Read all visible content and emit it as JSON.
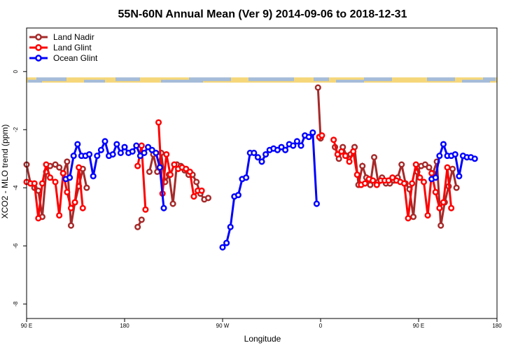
{
  "chart_data": {
    "type": "line",
    "title": "55N-60N Annual Mean (Ver 9)   2014-09-06 to 2018-12-31",
    "xlabel": "Longitude",
    "ylabel": "XCO2 - MLO trend (ppm)",
    "xlim": [
      -180,
      180
    ],
    "ylim": [
      -8.5,
      1.5
    ],
    "x_ticks": [
      {
        "value": -180,
        "label": "90 E"
      },
      {
        "value": -105,
        "label": "180"
      },
      {
        "value": -30,
        "label": "90 W"
      },
      {
        "value": 45,
        "label": "0"
      },
      {
        "value": 120,
        "label": "90 E"
      },
      {
        "value": 180,
        "label": "180"
      }
    ],
    "y_ticks": [
      0,
      -2,
      -4,
      -6,
      -8
    ],
    "grid": false,
    "legend_position": "top-left",
    "map_strip": {
      "y_top": -0.2,
      "y_bottom": -0.38,
      "land_color": "#f5d77a",
      "ocean_color": "#a5bcd9"
    },
    "series": [
      {
        "name": "Land Nadir",
        "color": "#a52a2a",
        "segments": [
          [
            [
              -180,
              -3.2
            ],
            [
              -177,
              -3.85
            ],
            [
              -174,
              -4.0
            ],
            [
              -171,
              -4.1
            ],
            [
              -168,
              -5.0
            ],
            [
              -165,
              -3.45
            ],
            [
              -162,
              -3.25
            ],
            [
              -158,
              -3.2
            ],
            [
              -155,
              -3.3
            ],
            [
              -152,
              -3.5
            ],
            [
              -149,
              -3.1
            ],
            [
              -146,
              -5.3
            ],
            [
              -143,
              -4.5
            ],
            [
              -140,
              -3.95
            ],
            [
              -137,
              -3.35
            ],
            [
              -134,
              -4.0
            ]
          ],
          [
            [
              -95,
              -5.35
            ],
            [
              -92,
              -5.1
            ]
          ],
          [
            [
              -86,
              -3.45
            ],
            [
              -83,
              -2.85
            ],
            [
              -80,
              -3.45
            ],
            [
              -77,
              -2.8
            ],
            [
              -74,
              -3.8
            ],
            [
              -71,
              -3.55
            ],
            [
              -68,
              -4.55
            ],
            [
              -65,
              -3.2
            ],
            [
              -62,
              -3.25
            ],
            [
              -59,
              -3.4
            ],
            [
              -56,
              -3.55
            ],
            [
              -53,
              -3.55
            ],
            [
              -50,
              -3.8
            ],
            [
              -47,
              -4.2
            ],
            [
              -44,
              -4.4
            ],
            [
              -41,
              -4.35
            ]
          ],
          [
            [
              43,
              -0.55
            ],
            [
              45,
              -2.3
            ]
          ],
          [
            [
              56,
              -2.6
            ],
            [
              59,
              -3.0
            ],
            [
              62,
              -2.6
            ],
            [
              65,
              -2.9
            ],
            [
              68,
              -2.85
            ],
            [
              71,
              -2.6
            ],
            [
              74,
              -3.9
            ],
            [
              77,
              -3.25
            ],
            [
              80,
              -3.65
            ],
            [
              83,
              -3.9
            ],
            [
              86,
              -2.95
            ],
            [
              89,
              -3.8
            ],
            [
              92,
              -3.65
            ],
            [
              95,
              -3.85
            ],
            [
              98,
              -3.85
            ],
            [
              101,
              -3.75
            ],
            [
              104,
              -3.65
            ],
            [
              107,
              -3.2
            ],
            [
              110,
              -3.85
            ],
            [
              113,
              -4.05
            ],
            [
              116,
              -5.0
            ],
            [
              119,
              -3.45
            ],
            [
              122,
              -3.25
            ],
            [
              125,
              -3.2
            ],
            [
              128,
              -3.3
            ],
            [
              131,
              -3.5
            ],
            [
              134,
              -3.1
            ],
            [
              137,
              -5.3
            ],
            [
              140,
              -4.5
            ],
            [
              143,
              -3.95
            ],
            [
              146,
              -3.35
            ],
            [
              149,
              -4.0
            ]
          ]
        ]
      },
      {
        "name": "Land Glint",
        "color": "#ff0000",
        "segments": [
          [
            [
              -180,
              -3.8
            ],
            [
              -177,
              -3.85
            ],
            [
              -174,
              -3.85
            ],
            [
              -171,
              -5.05
            ],
            [
              -168,
              -3.85
            ],
            [
              -165,
              -3.2
            ],
            [
              -162,
              -3.65
            ],
            [
              -158,
              -3.8
            ],
            [
              -155,
              -4.95
            ],
            [
              -152,
              -3.5
            ],
            [
              -149,
              -4.15
            ],
            [
              -146,
              -4.7
            ],
            [
              -143,
              -4.5
            ],
            [
              -140,
              -3.3
            ],
            [
              -137,
              -4.7
            ]
          ],
          [
            [
              -95,
              -3.25
            ],
            [
              -92,
              -2.55
            ],
            [
              -89,
              -4.75
            ]
          ],
          [
            [
              -79,
              -1.75
            ],
            [
              -76,
              -4.2
            ],
            [
              -73,
              -2.85
            ],
            [
              -70,
              -3.55
            ],
            [
              -67,
              -3.2
            ],
            [
              -64,
              -3.35
            ],
            [
              -61,
              -3.3
            ],
            [
              -58,
              -3.35
            ],
            [
              -55,
              -3.45
            ],
            [
              -52,
              -4.3
            ],
            [
              -49,
              -4.1
            ],
            [
              -46,
              -4.1
            ]
          ],
          [
            [
              44,
              -2.25
            ],
            [
              46,
              -2.2
            ]
          ],
          [
            [
              55,
              -2.35
            ],
            [
              58,
              -2.85
            ],
            [
              61,
              -2.75
            ],
            [
              64,
              -2.9
            ],
            [
              67,
              -3.1
            ],
            [
              70,
              -2.75
            ],
            [
              73,
              -3.55
            ],
            [
              76,
              -3.9
            ],
            [
              79,
              -3.85
            ],
            [
              82,
              -3.7
            ],
            [
              85,
              -3.75
            ],
            [
              88,
              -3.9
            ],
            [
              91,
              -3.75
            ],
            [
              94,
              -3.75
            ],
            [
              97,
              -3.75
            ],
            [
              100,
              -3.65
            ],
            [
              103,
              -3.75
            ],
            [
              106,
              -3.8
            ],
            [
              109,
              -3.85
            ],
            [
              112,
              -5.05
            ],
            [
              115,
              -3.85
            ],
            [
              118,
              -3.2
            ],
            [
              121,
              -3.65
            ],
            [
              124,
              -3.8
            ],
            [
              127,
              -4.95
            ],
            [
              130,
              -3.5
            ],
            [
              133,
              -4.15
            ],
            [
              136,
              -4.7
            ],
            [
              139,
              -4.5
            ],
            [
              142,
              -3.3
            ],
            [
              145,
              -4.7
            ]
          ]
        ]
      },
      {
        "name": "Ocean Glint",
        "color": "#0000ff",
        "segments": [
          [
            [
              -150,
              -3.7
            ],
            [
              -147,
              -3.65
            ],
            [
              -144,
              -2.9
            ],
            [
              -141,
              -2.5
            ],
            [
              -138,
              -2.9
            ],
            [
              -135,
              -2.9
            ],
            [
              -132,
              -2.85
            ],
            [
              -129,
              -3.6
            ],
            [
              -126,
              -2.9
            ],
            [
              -123,
              -2.7
            ],
            [
              -120,
              -2.4
            ],
            [
              -117,
              -2.9
            ],
            [
              -114,
              -2.85
            ],
            [
              -111,
              -2.5
            ],
            [
              -108,
              -2.8
            ],
            [
              -105,
              -2.6
            ],
            [
              -102,
              -2.8
            ],
            [
              -99,
              -2.75
            ],
            [
              -96,
              -2.55
            ],
            [
              -93,
              -2.9
            ],
            [
              -90,
              -2.8
            ],
            [
              -87,
              -2.6
            ],
            [
              -84,
              -2.7
            ],
            [
              -81,
              -2.8
            ],
            [
              -78,
              -3.3
            ],
            [
              -75,
              -4.7
            ]
          ],
          [
            [
              -30,
              -6.05
            ],
            [
              -27,
              -5.9
            ],
            [
              -24,
              -5.35
            ],
            [
              -21,
              -4.3
            ],
            [
              -18,
              -4.25
            ],
            [
              -15,
              -3.7
            ],
            [
              -12,
              -3.65
            ],
            [
              -9,
              -2.8
            ],
            [
              -6,
              -2.8
            ],
            [
              -3,
              -2.95
            ],
            [
              0,
              -3.1
            ],
            [
              3,
              -2.85
            ],
            [
              6,
              -2.7
            ],
            [
              9,
              -2.65
            ],
            [
              12,
              -2.7
            ],
            [
              15,
              -2.6
            ],
            [
              18,
              -2.7
            ],
            [
              21,
              -2.5
            ],
            [
              24,
              -2.55
            ],
            [
              27,
              -2.4
            ],
            [
              30,
              -2.55
            ],
            [
              33,
              -2.2
            ],
            [
              36,
              -2.25
            ],
            [
              39,
              -2.1
            ],
            [
              42,
              -4.55
            ]
          ],
          [
            [
              130,
              -3.7
            ],
            [
              133,
              -3.65
            ],
            [
              136,
              -2.9
            ],
            [
              139,
              -2.5
            ],
            [
              142,
              -2.9
            ],
            [
              145,
              -2.9
            ],
            [
              148,
              -2.85
            ],
            [
              151,
              -3.6
            ],
            [
              154,
              -2.9
            ],
            [
              157,
              -2.95
            ],
            [
              160,
              -2.95
            ],
            [
              163,
              -3.0
            ]
          ]
        ]
      }
    ]
  }
}
